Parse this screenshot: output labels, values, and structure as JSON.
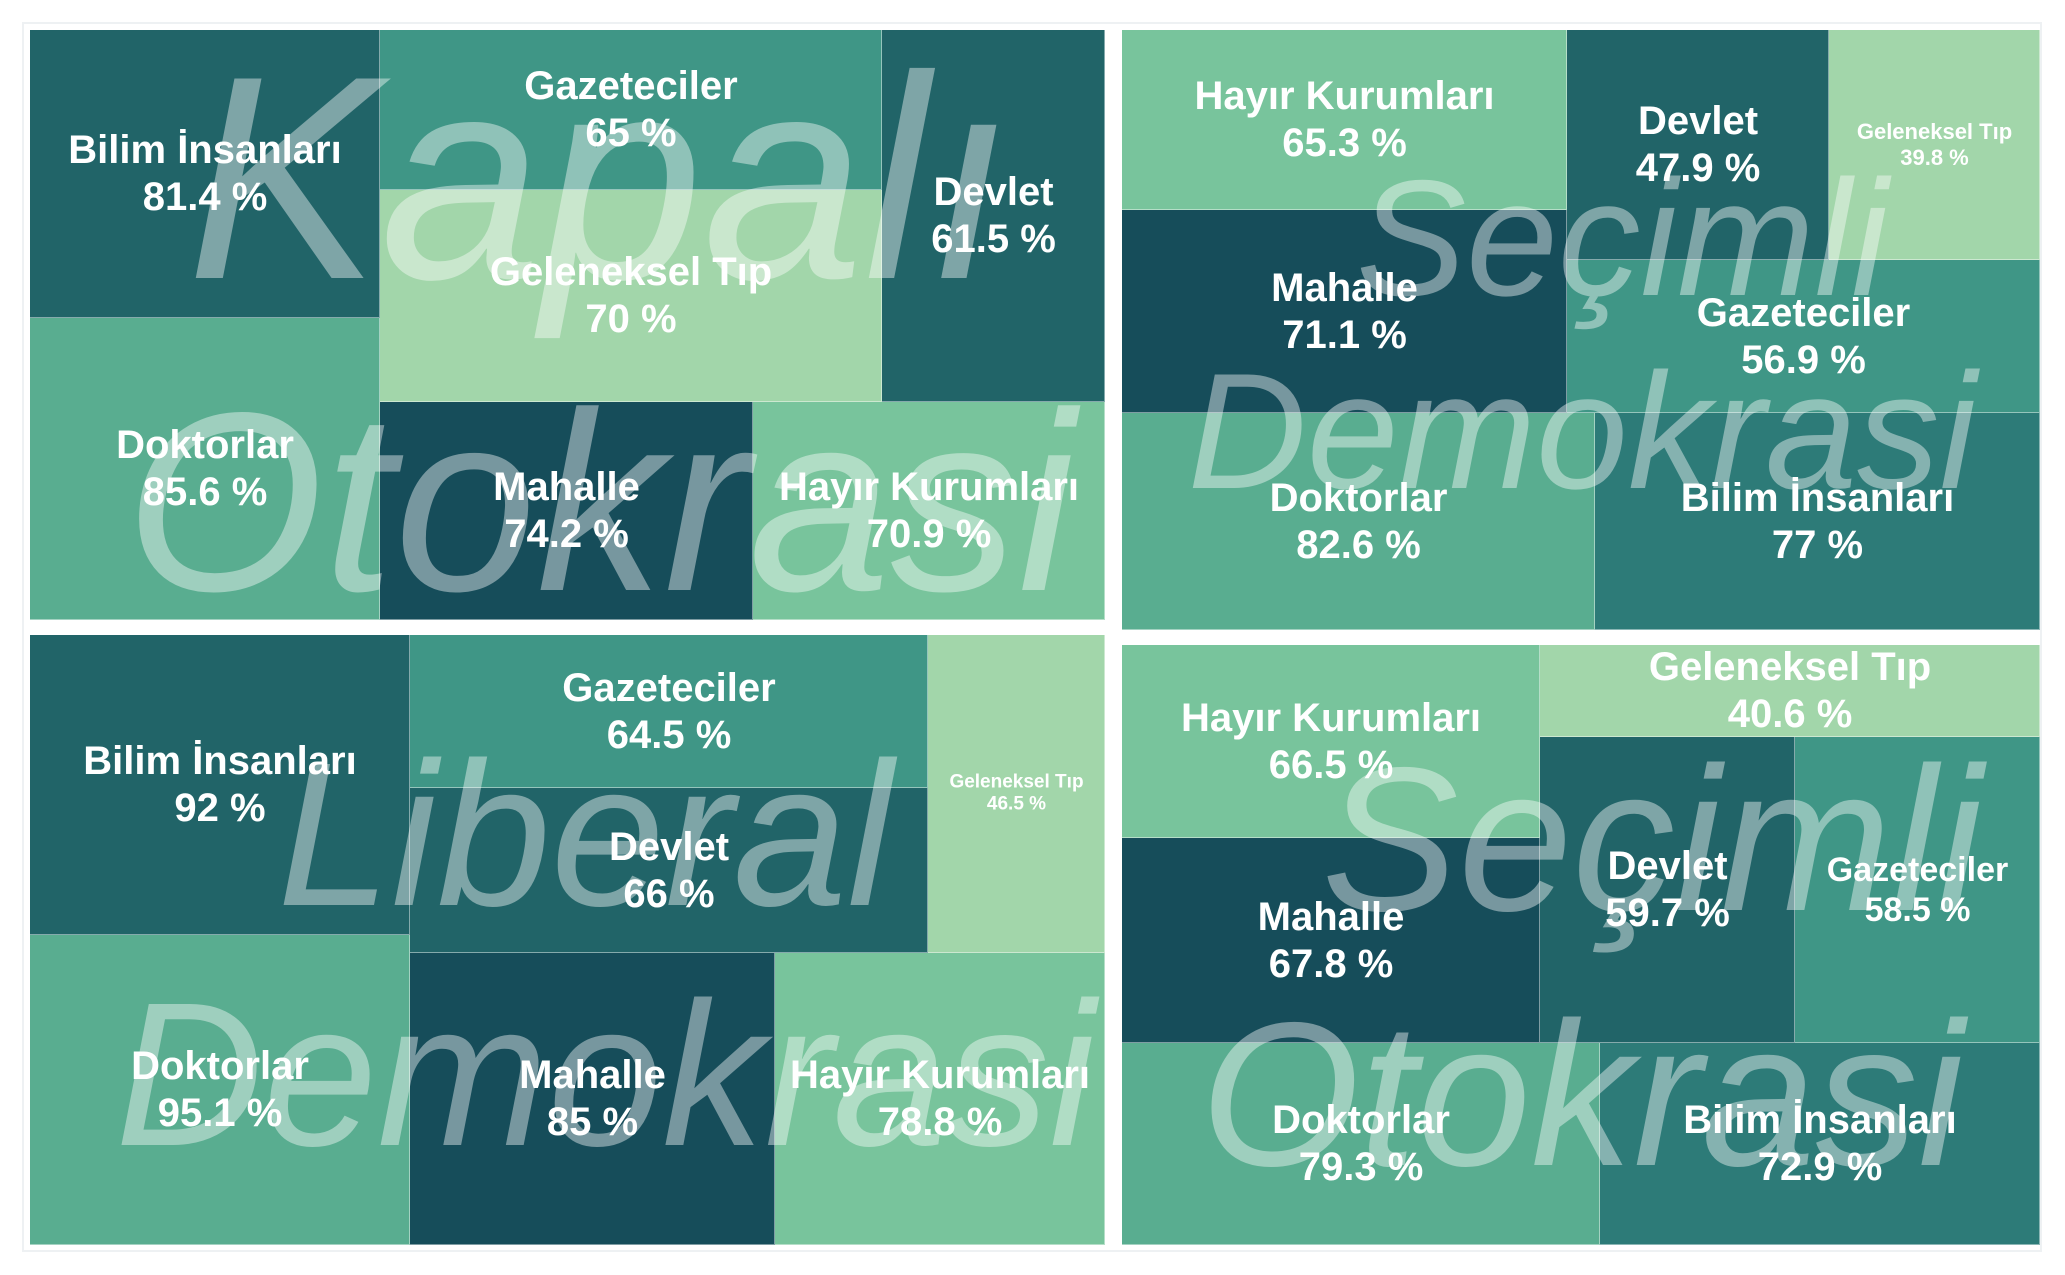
{
  "colors": {
    "very_dark": "#164d5a",
    "dark": "#216468",
    "mid_dark": "#2d7b78",
    "mid": "#3f9686",
    "light_mid": "#59ad90",
    "light": "#78c49c",
    "very_light": "#a2d6aa",
    "background": "#ffffff"
  },
  "chart_data": [
    {
      "type": "treemap",
      "watermark_lines": [
        "Kapalı",
        "Otokrasi"
      ],
      "tiles": [
        {
          "name": "Bilim İnsanları",
          "value": 81.4,
          "value_label": "81.4 %"
        },
        {
          "name": "Doktorlar",
          "value": 85.6,
          "value_label": "85.6 %"
        },
        {
          "name": "Gazeteciler",
          "value": 65,
          "value_label": "65 %"
        },
        {
          "name": "Geleneksel Tıp",
          "value": 70,
          "value_label": "70 %"
        },
        {
          "name": "Devlet",
          "value": 61.5,
          "value_label": "61.5 %"
        },
        {
          "name": "Mahalle",
          "value": 74.2,
          "value_label": "74.2 %"
        },
        {
          "name": "Hayır Kurumları",
          "value": 70.9,
          "value_label": "70.9 %"
        }
      ]
    },
    {
      "type": "treemap",
      "watermark_lines": [
        "Seçimli",
        "Demokrasi"
      ],
      "tiles": [
        {
          "name": "Hayır Kurumları",
          "value": 65.3,
          "value_label": "65.3 %"
        },
        {
          "name": "Mahalle",
          "value": 71.1,
          "value_label": "71.1 %"
        },
        {
          "name": "Devlet",
          "value": 47.9,
          "value_label": "47.9 %"
        },
        {
          "name": "Geleneksel Tıp",
          "value": 39.8,
          "value_label": "39.8 %"
        },
        {
          "name": "Gazeteciler",
          "value": 56.9,
          "value_label": "56.9 %"
        },
        {
          "name": "Doktorlar",
          "value": 82.6,
          "value_label": "82.6 %"
        },
        {
          "name": "Bilim İnsanları",
          "value": 77,
          "value_label": "77 %"
        }
      ]
    },
    {
      "type": "treemap",
      "watermark_lines": [
        "Liberal",
        "Demokrasi"
      ],
      "tiles": [
        {
          "name": "Bilim İnsanları",
          "value": 92,
          "value_label": "92 %"
        },
        {
          "name": "Doktorlar",
          "value": 95.1,
          "value_label": "95.1 %"
        },
        {
          "name": "Gazeteciler",
          "value": 64.5,
          "value_label": "64.5 %"
        },
        {
          "name": "Devlet",
          "value": 66,
          "value_label": "66 %"
        },
        {
          "name": "Geleneksel Tıp",
          "value": 46.5,
          "value_label": "46.5 %"
        },
        {
          "name": "Mahalle",
          "value": 85,
          "value_label": "85 %"
        },
        {
          "name": "Hayır Kurumları",
          "value": 78.8,
          "value_label": "78.8 %"
        }
      ]
    },
    {
      "type": "treemap",
      "watermark_lines": [
        "Seçimli",
        "Otokrasi"
      ],
      "tiles": [
        {
          "name": "Hayır Kurumları",
          "value": 66.5,
          "value_label": "66.5 %"
        },
        {
          "name": "Mahalle",
          "value": 67.8,
          "value_label": "67.8 %"
        },
        {
          "name": "Geleneksel Tıp",
          "value": 40.6,
          "value_label": "40.6 %"
        },
        {
          "name": "Devlet",
          "value": 59.7,
          "value_label": "59.7 %"
        },
        {
          "name": "Gazeteciler",
          "value": 58.5,
          "value_label": "58.5 %"
        },
        {
          "name": "Doktorlar",
          "value": 79.3,
          "value_label": "79.3 %"
        },
        {
          "name": "Bilim İnsanları",
          "value": 72.9,
          "value_label": "72.9 %"
        }
      ]
    }
  ]
}
